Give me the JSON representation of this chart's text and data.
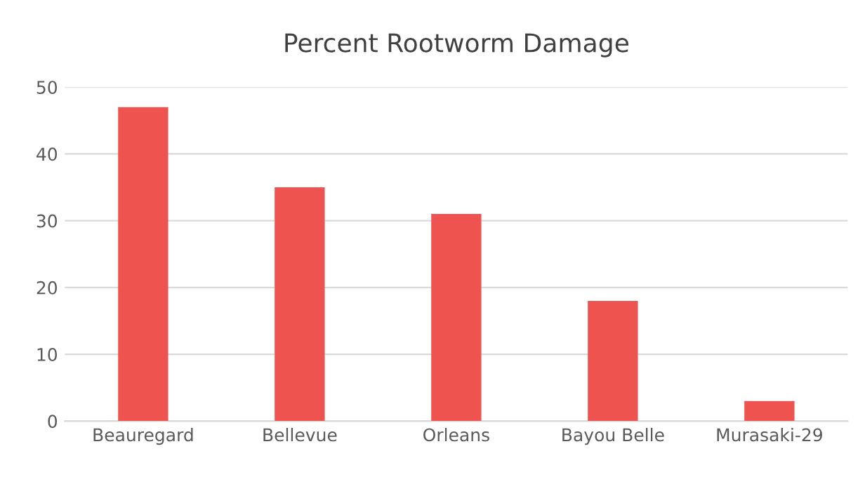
{
  "chart_data": {
    "type": "bar",
    "title": "Percent Rootworm Damage",
    "categories": [
      "Beauregard",
      "Bellevue",
      "Orleans",
      "Bayou Belle",
      "Murasaki-29"
    ],
    "values": [
      47,
      35,
      31,
      18,
      3
    ],
    "color": "#ef5350",
    "ylim": [
      0,
      50
    ],
    "yticks": [
      0,
      10,
      20,
      30,
      40,
      50
    ],
    "grid": "y"
  }
}
